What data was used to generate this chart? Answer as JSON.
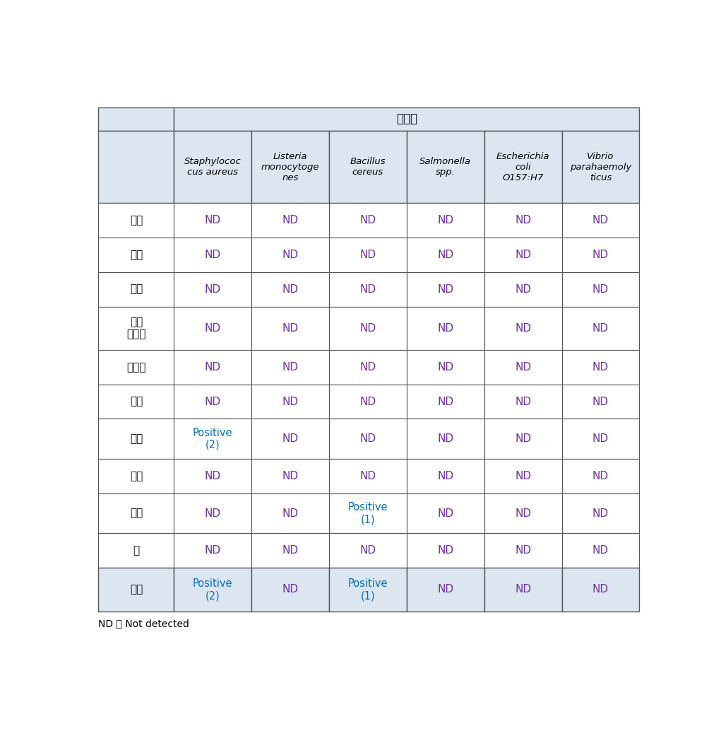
{
  "title_cell": "병원균",
  "header_bg": "#dce6f1",
  "body_bg": "#ffffff",
  "footer_bg": "#dce6f1",
  "col_headers": [
    "Staphylococ\ncus aureus",
    "Listeria\nmonocytoge\nnes",
    "Bacillus\ncereus",
    "Salmonella\nspp.",
    "Escherichia\ncoli\nO157:H7",
    "Vibrio\nparahaemoly\nticus"
  ],
  "row_labels": [
    "고추",
    "대파",
    "마늘",
    "방울\n토마토",
    "양상추",
    "오이",
    "새우",
    "어묵",
    "꽤막",
    "굴",
    "평균"
  ],
  "data": [
    [
      "ND",
      "ND",
      "ND",
      "ND",
      "ND",
      "ND"
    ],
    [
      "ND",
      "ND",
      "ND",
      "ND",
      "ND",
      "ND"
    ],
    [
      "ND",
      "ND",
      "ND",
      "ND",
      "ND",
      "ND"
    ],
    [
      "ND",
      "ND",
      "ND",
      "ND",
      "ND",
      "ND"
    ],
    [
      "ND",
      "ND",
      "ND",
      "ND",
      "ND",
      "ND"
    ],
    [
      "ND",
      "ND",
      "ND",
      "ND",
      "ND",
      "ND"
    ],
    [
      "Positive\n(2)",
      "ND",
      "ND",
      "ND",
      "ND",
      "ND"
    ],
    [
      "ND",
      "ND",
      "ND",
      "ND",
      "ND",
      "ND"
    ],
    [
      "ND",
      "ND",
      "Positive\n(1)",
      "ND",
      "ND",
      "ND"
    ],
    [
      "ND",
      "ND",
      "ND",
      "ND",
      "ND",
      "ND"
    ],
    [
      "Positive\n(2)",
      "ND",
      "Positive\n(1)",
      "ND",
      "ND",
      "ND"
    ]
  ],
  "nd_color": "#7030a0",
  "positive_color": "#0070c0",
  "label_color_korean": "#000000",
  "border_color": "#555555",
  "footnote": "ND ： Not detected",
  "title_fontsize": 12,
  "header_fontsize": 9.5,
  "data_fontsize": 11,
  "label_fontsize": 11,
  "footnote_fontsize": 10
}
